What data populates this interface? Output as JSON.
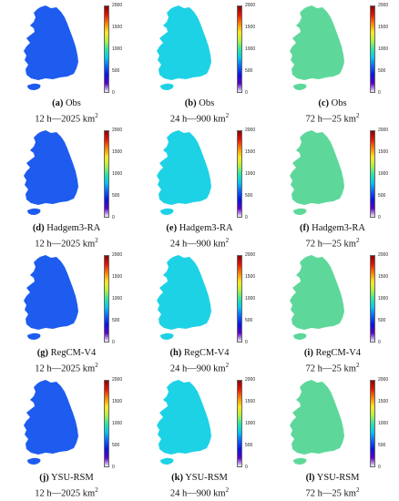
{
  "colorbar": {
    "ticks": [
      "2000",
      "1500",
      "1000",
      "500",
      "0"
    ],
    "tick_values": [
      2000,
      1500,
      1000,
      500,
      0
    ],
    "colors": [
      "#f2f0fa",
      "#5a00c8",
      "#0a14e6",
      "#0a64ff",
      "#00c8f0",
      "#30e6a0",
      "#b4f040",
      "#ffe61e",
      "#ff8200",
      "#e61400",
      "#8c0000"
    ]
  },
  "column_fill_colors": [
    "#1e5cf0",
    "#1ed2e6",
    "#5ed89a"
  ],
  "panels": [
    {
      "letter": "(a)",
      "model": "Obs",
      "hours": "12 h",
      "area": "2025",
      "unit": "km",
      "sup": "2"
    },
    {
      "letter": "(b)",
      "model": "Obs",
      "hours": "24 h",
      "area": "900",
      "unit": "km",
      "sup": "2"
    },
    {
      "letter": "(c)",
      "model": "Obs",
      "hours": "72 h",
      "area": "25",
      "unit": "km",
      "sup": "2"
    },
    {
      "letter": "(d)",
      "model": "Hadgem3-RA",
      "hours": "12 h",
      "area": "2025",
      "unit": "km",
      "sup": "2"
    },
    {
      "letter": "(e)",
      "model": "Hadgem3-RA",
      "hours": "24 h",
      "area": "900",
      "unit": "km",
      "sup": "2"
    },
    {
      "letter": "(f)",
      "model": "Hadgem3-RA",
      "hours": "72 h",
      "area": "25",
      "unit": "km",
      "sup": "2"
    },
    {
      "letter": "(g)",
      "model": "RegCM-V4",
      "hours": "12 h",
      "area": "2025",
      "unit": "km",
      "sup": "2"
    },
    {
      "letter": "(h)",
      "model": "RegCM-V4",
      "hours": "24 h",
      "area": "900",
      "unit": "km",
      "sup": "2"
    },
    {
      "letter": "(i)",
      "model": "RegCM-V4",
      "hours": "72 h",
      "area": "25",
      "unit": "km",
      "sup": "2"
    },
    {
      "letter": "(j)",
      "model": "YSU-RSM",
      "hours": "12 h",
      "area": "2025",
      "unit": "km",
      "sup": "2"
    },
    {
      "letter": "(k)",
      "model": "YSU-RSM",
      "hours": "24 h",
      "area": "900",
      "unit": "km",
      "sup": "2"
    },
    {
      "letter": "(l)",
      "model": "YSU-RSM",
      "hours": "72 h",
      "area": "25",
      "unit": "km",
      "sup": "2"
    }
  ],
  "separator": "—"
}
